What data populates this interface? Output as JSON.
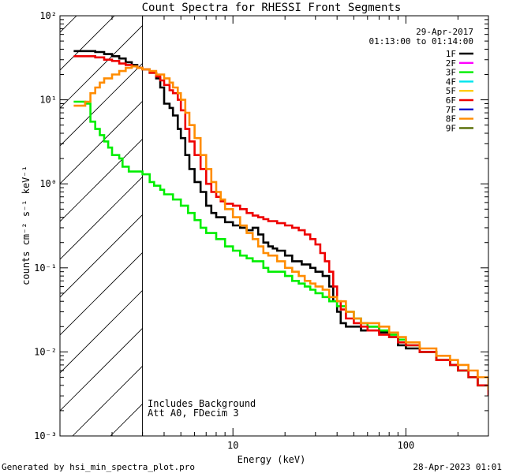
{
  "chart_data": {
    "type": "line",
    "title": "Count Spectra for RHESSI Front Segments",
    "date": "29-Apr-2017",
    "time_range": "01:13:00 to 01:14:00",
    "xlabel": "Energy (keV)",
    "ylabel": "counts cm⁻² s⁻¹ keV⁻¹",
    "xscale": "log",
    "yscale": "log",
    "xlim": [
      1,
      300
    ],
    "ylim": [
      0.001,
      100
    ],
    "x_ticks": [
      {
        "value": 10,
        "label": "10"
      },
      {
        "value": 100,
        "label": "100"
      }
    ],
    "y_ticks": [
      {
        "value": 0.001,
        "label": "10⁻³"
      },
      {
        "value": 0.01,
        "label": "10⁻²"
      },
      {
        "value": 0.1,
        "label": "10⁻¹"
      },
      {
        "value": 1,
        "label": "10⁰"
      },
      {
        "value": 10,
        "label": "10¹"
      },
      {
        "value": 100,
        "label": "10²"
      }
    ],
    "hatched_region": [
      1,
      3
    ],
    "vertical_line": 3,
    "legend_position": "top-right",
    "legend": [
      {
        "name": "1F",
        "color": "#000000"
      },
      {
        "name": "2F",
        "color": "#ff00ff"
      },
      {
        "name": "3F",
        "color": "#00ee00"
      },
      {
        "name": "4F",
        "color": "#00e5ee"
      },
      {
        "name": "5F",
        "color": "#ffcc00"
      },
      {
        "name": "6F",
        "color": "#ee0000"
      },
      {
        "name": "7F",
        "color": "#0000cc"
      },
      {
        "name": "8F",
        "color": "#ff8c00"
      },
      {
        "name": "9F",
        "color": "#556b00"
      }
    ],
    "series": [
      {
        "name": "1F",
        "color": "#000000",
        "points": [
          [
            1.2,
            38
          ],
          [
            1.4,
            38
          ],
          [
            1.6,
            37
          ],
          [
            1.8,
            35
          ],
          [
            2.0,
            33
          ],
          [
            2.2,
            31
          ],
          [
            2.4,
            28
          ],
          [
            2.6,
            26
          ],
          [
            2.8,
            24
          ],
          [
            3.0,
            23
          ],
          [
            3.3,
            21
          ],
          [
            3.6,
            18
          ],
          [
            3.8,
            14
          ],
          [
            4.0,
            9
          ],
          [
            4.3,
            8
          ],
          [
            4.5,
            6.5
          ],
          [
            4.8,
            4.5
          ],
          [
            5.0,
            3.5
          ],
          [
            5.3,
            2.2
          ],
          [
            5.6,
            1.5
          ],
          [
            6.0,
            1.05
          ],
          [
            6.5,
            0.8
          ],
          [
            7.0,
            0.55
          ],
          [
            7.5,
            0.45
          ],
          [
            8.0,
            0.4
          ],
          [
            9.0,
            0.35
          ],
          [
            10,
            0.32
          ],
          [
            11,
            0.3
          ],
          [
            12,
            0.28
          ],
          [
            13,
            0.3
          ],
          [
            14,
            0.25
          ],
          [
            15,
            0.2
          ],
          [
            16,
            0.18
          ],
          [
            17,
            0.17
          ],
          [
            18,
            0.16
          ],
          [
            20,
            0.14
          ],
          [
            22,
            0.12
          ],
          [
            25,
            0.11
          ],
          [
            28,
            0.1
          ],
          [
            30,
            0.09
          ],
          [
            33,
            0.08
          ],
          [
            36,
            0.06
          ],
          [
            38,
            0.04
          ],
          [
            40,
            0.03
          ],
          [
            42,
            0.022
          ],
          [
            45,
            0.02
          ],
          [
            50,
            0.02
          ],
          [
            55,
            0.018
          ],
          [
            60,
            0.02
          ],
          [
            70,
            0.017
          ],
          [
            80,
            0.015
          ],
          [
            90,
            0.012
          ],
          [
            100,
            0.011
          ],
          [
            120,
            0.01
          ],
          [
            150,
            0.008
          ],
          [
            180,
            0.007
          ],
          [
            200,
            0.006
          ],
          [
            230,
            0.005
          ],
          [
            260,
            0.004
          ],
          [
            300,
            0.004
          ]
        ]
      },
      {
        "name": "3F",
        "color": "#00ee00",
        "points": [
          [
            1.2,
            9.5
          ],
          [
            1.3,
            9.5
          ],
          [
            1.4,
            9.0
          ],
          [
            1.5,
            5.5
          ],
          [
            1.6,
            4.5
          ],
          [
            1.7,
            3.8
          ],
          [
            1.8,
            3.2
          ],
          [
            1.9,
            2.7
          ],
          [
            2.0,
            2.2
          ],
          [
            2.2,
            2.0
          ],
          [
            2.3,
            1.6
          ],
          [
            2.5,
            1.4
          ],
          [
            2.8,
            1.4
          ],
          [
            3.0,
            1.3
          ],
          [
            3.3,
            1.05
          ],
          [
            3.5,
            0.95
          ],
          [
            3.8,
            0.85
          ],
          [
            4.0,
            0.75
          ],
          [
            4.5,
            0.65
          ],
          [
            5.0,
            0.55
          ],
          [
            5.5,
            0.45
          ],
          [
            6.0,
            0.37
          ],
          [
            6.5,
            0.3
          ],
          [
            7.0,
            0.26
          ],
          [
            8.0,
            0.22
          ],
          [
            9.0,
            0.18
          ],
          [
            10,
            0.16
          ],
          [
            11,
            0.14
          ],
          [
            12,
            0.13
          ],
          [
            13,
            0.12
          ],
          [
            14,
            0.12
          ],
          [
            15,
            0.1
          ],
          [
            16,
            0.09
          ],
          [
            18,
            0.09
          ],
          [
            20,
            0.08
          ],
          [
            22,
            0.07
          ],
          [
            24,
            0.065
          ],
          [
            26,
            0.06
          ],
          [
            28,
            0.055
          ],
          [
            30,
            0.05
          ],
          [
            33,
            0.045
          ],
          [
            36,
            0.04
          ],
          [
            40,
            0.035
          ],
          [
            45,
            0.03
          ],
          [
            50,
            0.025
          ],
          [
            55,
            0.022
          ],
          [
            60,
            0.02
          ],
          [
            70,
            0.018
          ],
          [
            80,
            0.016
          ],
          [
            90,
            0.014
          ],
          [
            100,
            0.012
          ],
          [
            120,
            0.01
          ],
          [
            150,
            0.008
          ],
          [
            180,
            0.007
          ],
          [
            200,
            0.006
          ],
          [
            230,
            0.005
          ],
          [
            260,
            0.004
          ],
          [
            300,
            0.0035
          ]
        ]
      },
      {
        "name": "6F",
        "color": "#ee0000",
        "points": [
          [
            1.2,
            33
          ],
          [
            1.4,
            33
          ],
          [
            1.6,
            32
          ],
          [
            1.8,
            30
          ],
          [
            2.0,
            29
          ],
          [
            2.2,
            27
          ],
          [
            2.4,
            26
          ],
          [
            2.6,
            25
          ],
          [
            2.8,
            24
          ],
          [
            3.0,
            23
          ],
          [
            3.3,
            21
          ],
          [
            3.6,
            19
          ],
          [
            3.8,
            17
          ],
          [
            4.0,
            15
          ],
          [
            4.3,
            13
          ],
          [
            4.5,
            12
          ],
          [
            4.8,
            10
          ],
          [
            5.0,
            7.5
          ],
          [
            5.3,
            4.5
          ],
          [
            5.6,
            3.2
          ],
          [
            6.0,
            2.2
          ],
          [
            6.5,
            1.5
          ],
          [
            7.0,
            1.0
          ],
          [
            7.5,
            0.8
          ],
          [
            8.0,
            0.7
          ],
          [
            8.5,
            0.62
          ],
          [
            9.0,
            0.58
          ],
          [
            10,
            0.55
          ],
          [
            11,
            0.5
          ],
          [
            12,
            0.45
          ],
          [
            13,
            0.42
          ],
          [
            14,
            0.4
          ],
          [
            15,
            0.38
          ],
          [
            16,
            0.36
          ],
          [
            18,
            0.34
          ],
          [
            20,
            0.32
          ],
          [
            22,
            0.3
          ],
          [
            24,
            0.28
          ],
          [
            26,
            0.25
          ],
          [
            28,
            0.22
          ],
          [
            30,
            0.19
          ],
          [
            32,
            0.15
          ],
          [
            34,
            0.12
          ],
          [
            36,
            0.09
          ],
          [
            38,
            0.06
          ],
          [
            40,
            0.04
          ],
          [
            42,
            0.032
          ],
          [
            45,
            0.025
          ],
          [
            50,
            0.022
          ],
          [
            55,
            0.02
          ],
          [
            60,
            0.018
          ],
          [
            70,
            0.016
          ],
          [
            80,
            0.015
          ],
          [
            90,
            0.013
          ],
          [
            100,
            0.012
          ],
          [
            120,
            0.01
          ],
          [
            150,
            0.008
          ],
          [
            180,
            0.007
          ],
          [
            200,
            0.006
          ],
          [
            230,
            0.005
          ],
          [
            260,
            0.004
          ],
          [
            300,
            0.003
          ]
        ]
      },
      {
        "name": "8F",
        "color": "#ff8c00",
        "points": [
          [
            1.2,
            8.5
          ],
          [
            1.3,
            8.5
          ],
          [
            1.4,
            9.5
          ],
          [
            1.5,
            12
          ],
          [
            1.6,
            14
          ],
          [
            1.7,
            16
          ],
          [
            1.8,
            18
          ],
          [
            2.0,
            20
          ],
          [
            2.2,
            22
          ],
          [
            2.4,
            24
          ],
          [
            2.6,
            25
          ],
          [
            2.8,
            24
          ],
          [
            3.0,
            23
          ],
          [
            3.3,
            22
          ],
          [
            3.6,
            20
          ],
          [
            4.0,
            18
          ],
          [
            4.3,
            16
          ],
          [
            4.5,
            14
          ],
          [
            4.8,
            12
          ],
          [
            5.0,
            10
          ],
          [
            5.3,
            7
          ],
          [
            5.6,
            5
          ],
          [
            6.0,
            3.5
          ],
          [
            6.5,
            2.2
          ],
          [
            7.0,
            1.5
          ],
          [
            7.5,
            1.05
          ],
          [
            8.0,
            0.8
          ],
          [
            8.5,
            0.65
          ],
          [
            9.0,
            0.5
          ],
          [
            10,
            0.4
          ],
          [
            11,
            0.32
          ],
          [
            12,
            0.26
          ],
          [
            13,
            0.22
          ],
          [
            14,
            0.18
          ],
          [
            15,
            0.15
          ],
          [
            16,
            0.14
          ],
          [
            18,
            0.12
          ],
          [
            20,
            0.1
          ],
          [
            22,
            0.09
          ],
          [
            24,
            0.08
          ],
          [
            26,
            0.07
          ],
          [
            28,
            0.065
          ],
          [
            30,
            0.06
          ],
          [
            33,
            0.055
          ],
          [
            36,
            0.045
          ],
          [
            40,
            0.04
          ],
          [
            45,
            0.03
          ],
          [
            50,
            0.025
          ],
          [
            55,
            0.022
          ],
          [
            60,
            0.022
          ],
          [
            70,
            0.02
          ],
          [
            80,
            0.017
          ],
          [
            90,
            0.015
          ],
          [
            100,
            0.013
          ],
          [
            120,
            0.011
          ],
          [
            150,
            0.009
          ],
          [
            180,
            0.008
          ],
          [
            200,
            0.007
          ],
          [
            230,
            0.006
          ],
          [
            260,
            0.005
          ],
          [
            300,
            0.0035
          ]
        ]
      }
    ],
    "annotations": [
      "Includes Background",
      "Att A0, FDecim 3"
    ]
  },
  "footer": {
    "left": "Generated by hsi_min_spectra_plot.pro",
    "right": "28-Apr-2023 01:01"
  }
}
